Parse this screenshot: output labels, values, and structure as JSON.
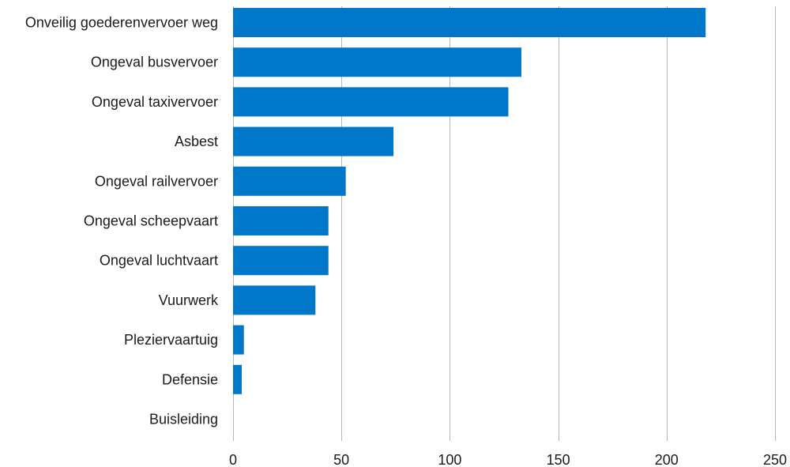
{
  "chart_data": {
    "type": "bar",
    "orientation": "horizontal",
    "categories": [
      "Onveilig goederenvervoer weg",
      "Ongeval busvervoer",
      "Ongeval taxivervoer",
      "Asbest",
      "Ongeval railvervoer",
      "Ongeval scheepvaart",
      "Ongeval luchtvaart",
      "Vuurwerk",
      "Pleziervaartuig",
      "Defensie",
      "Buisleiding"
    ],
    "values": [
      218,
      133,
      127,
      74,
      52,
      44,
      44,
      38,
      5,
      4,
      0
    ],
    "xlim": [
      0,
      250
    ],
    "xticks": [
      0,
      50,
      100,
      150,
      200,
      250
    ],
    "title": "",
    "xlabel": "",
    "ylabel": "",
    "grid": "vertical",
    "bar_color": "#0077c8",
    "grid_color": "#b8b8b8"
  }
}
